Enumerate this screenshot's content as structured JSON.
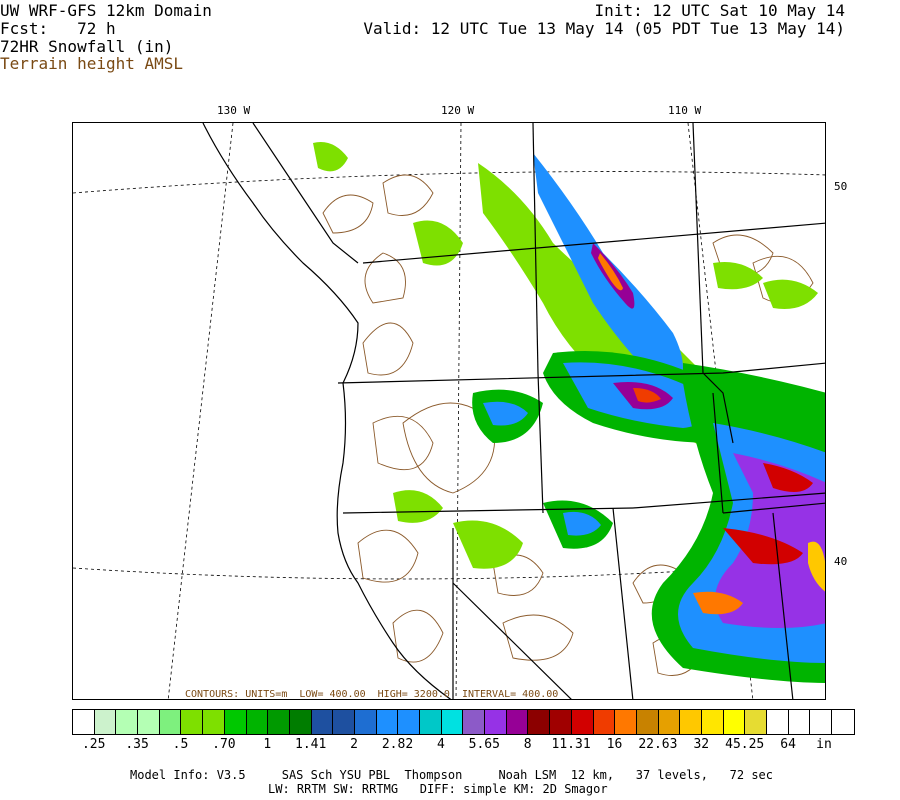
{
  "header": {
    "model": "UW WRF-GFS 12km Domain",
    "fcst": "Fcst:   72 h",
    "field": "72HR Snowfall (in)",
    "terrain": "Terrain height AMSL",
    "init": "Init: 12 UTC Sat 10 May 14",
    "valid": "Valid: 12 UTC Tue 13 May 14 (05 PDT Tue 13 May 14)"
  },
  "map": {
    "lon_labels": [
      "130 W",
      "120 W",
      "110 W"
    ],
    "lat_labels": [
      "50",
      "40"
    ],
    "contour_info": "CONTOURS: UNITS=m  LOW= 400.00  HIGH= 3200.0  INTERVAL= 400.00"
  },
  "colorbar": {
    "colors": [
      "#ffffff",
      "#ccf2cc",
      "#b4ffb4",
      "#b4ffb4",
      "#7ef07e",
      "#7ee000",
      "#7ee000",
      "#00c800",
      "#00b400",
      "#009a00",
      "#007d00",
      "#1e50a0",
      "#1e50a0",
      "#1e6ed2",
      "#1e90ff",
      "#1e90ff",
      "#00c8c8",
      "#00e1e1",
      "#8c5ac8",
      "#9632e6",
      "#960096",
      "#8c0000",
      "#a00000",
      "#d20000",
      "#f03c00",
      "#ff7800",
      "#c88200",
      "#e6a000",
      "#ffc800",
      "#ffe600",
      "#ffff00",
      "#e6dc32",
      "#ffffff",
      "#ffffff",
      "#ffffff",
      "#ffffff"
    ],
    "ticks": [
      ".25",
      ".35",
      ".5",
      ".70",
      "1",
      "1.41",
      "2",
      "2.82",
      "4",
      "5.65",
      "8",
      "11.31",
      "16",
      "22.63",
      "32",
      "45.25",
      "64"
    ],
    "units": "in"
  },
  "footer": {
    "line1": "Model Info: V3.5     SAS Sch YSU PBL  Thompson     Noah LSM  12 km,   37 levels,   72 sec",
    "line2": "LW: RRTM SW: RRTMG   DIFF: simple KM: 2D Smagor"
  }
}
